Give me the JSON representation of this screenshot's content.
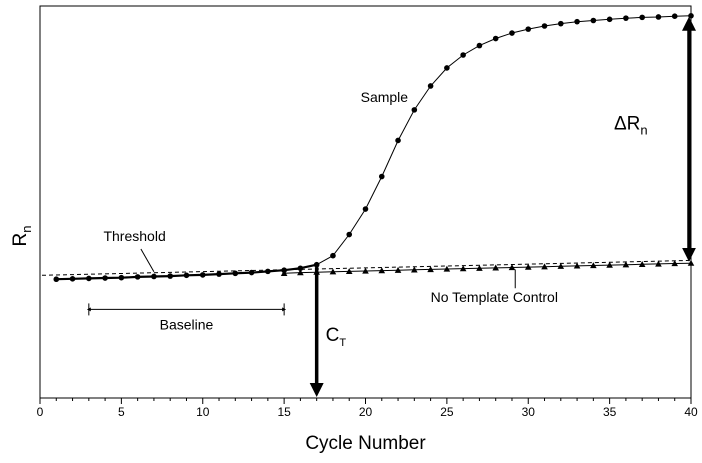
{
  "chart_data": {
    "type": "line",
    "xlabel": "Cycle Number",
    "ylabel": "R",
    "ylabel_subscript": "n",
    "xlim": [
      0,
      40
    ],
    "ylim": [
      0,
      100
    ],
    "x_ticks": [
      0,
      5,
      10,
      15,
      20,
      25,
      30,
      35,
      40
    ],
    "grid": false,
    "legend": "none",
    "series": [
      {
        "name": "Sample",
        "marker": "circle",
        "x": [
          1,
          2,
          3,
          4,
          5,
          6,
          7,
          8,
          9,
          10,
          11,
          12,
          13,
          14,
          15,
          16,
          17,
          18,
          19,
          20,
          21,
          22,
          23,
          24,
          25,
          26,
          27,
          28,
          29,
          30,
          31,
          32,
          33,
          34,
          35,
          36,
          37,
          38,
          39,
          40
        ],
        "values": [
          30.3,
          30.4,
          30.5,
          30.6,
          30.7,
          30.9,
          31.0,
          31.1,
          31.3,
          31.4,
          31.6,
          31.8,
          32.0,
          32.3,
          32.6,
          33.1,
          34.0,
          36.3,
          41.7,
          48.2,
          56.5,
          65.7,
          73.5,
          79.6,
          84.2,
          87.5,
          89.9,
          91.7,
          93.1,
          94.1,
          94.9,
          95.5,
          96.0,
          96.3,
          96.6,
          96.9,
          97.1,
          97.2,
          97.4,
          97.5
        ]
      },
      {
        "name": "No Template Control",
        "marker": "triangle",
        "x": [
          15,
          16,
          17,
          18,
          19,
          20,
          21,
          22,
          23,
          24,
          25,
          26,
          27,
          28,
          29,
          30,
          31,
          32,
          33,
          34,
          35,
          36,
          37,
          38,
          39,
          40
        ],
        "values": [
          31.8,
          32.0,
          32.1,
          32.2,
          32.3,
          32.4,
          32.5,
          32.6,
          32.7,
          32.8,
          32.9,
          33.0,
          33.1,
          33.2,
          33.3,
          33.4,
          33.5,
          33.6,
          33.7,
          33.8,
          33.9,
          34.0,
          34.1,
          34.2,
          34.3,
          34.4
        ]
      }
    ],
    "threshold": {
      "label": "Threshold",
      "x": [
        0,
        40
      ],
      "y": [
        31.3,
        35.1
      ]
    },
    "annotations": {
      "sample_label": "Sample",
      "ntc_label": "No Template Control",
      "baseline_label": "Baseline",
      "baseline_range": [
        3,
        15
      ],
      "ct_label": "C",
      "ct_subscript": "T",
      "ct_x": 17,
      "delta_label": "ΔR",
      "delta_subscript": "n",
      "delta_x": 40,
      "delta_range": [
        34.5,
        97.5
      ]
    }
  }
}
